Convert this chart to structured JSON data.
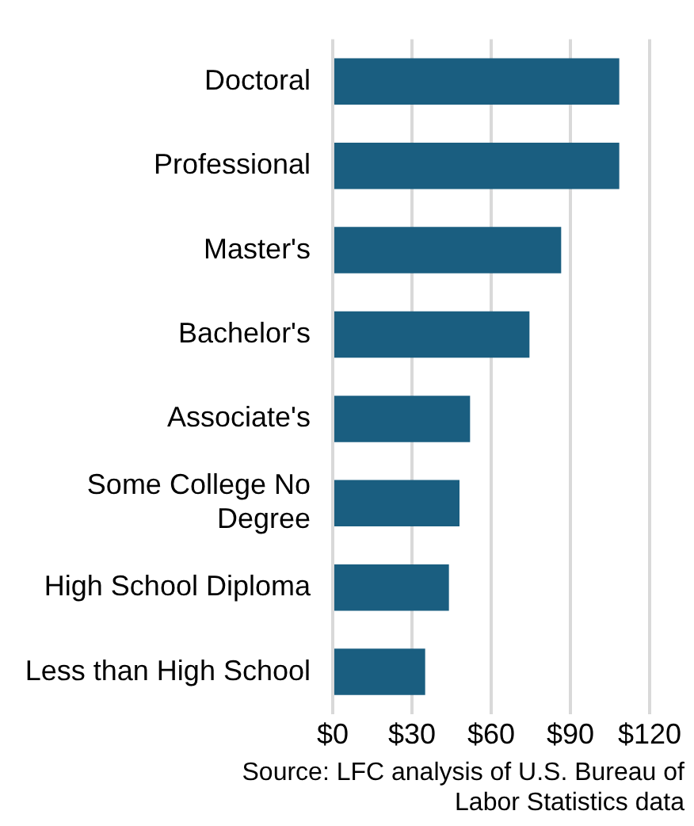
{
  "chart_data": {
    "type": "bar",
    "orientation": "horizontal",
    "categories": [
      "Doctoral",
      "Professional",
      "Master's",
      "Bachelor's",
      "Associate's",
      "Some College No Degree",
      "High School Diploma",
      "Less than High School"
    ],
    "values": [
      108.5,
      108.5,
      86.5,
      74.5,
      52,
      48,
      44,
      35
    ],
    "color": "#1a5e80",
    "xlim": [
      0,
      120
    ],
    "xticks": [
      {
        "value": 0,
        "label": "$0"
      },
      {
        "value": 30,
        "label": "$30"
      },
      {
        "value": 60,
        "label": "$60"
      },
      {
        "value": 90,
        "label": "$90"
      },
      {
        "value": 120,
        "label": "$120"
      }
    ],
    "grid": "x",
    "legend": false,
    "annotations": [
      "Source: LFC analysis of U.S. Bureau of Labor Statistics data"
    ]
  }
}
